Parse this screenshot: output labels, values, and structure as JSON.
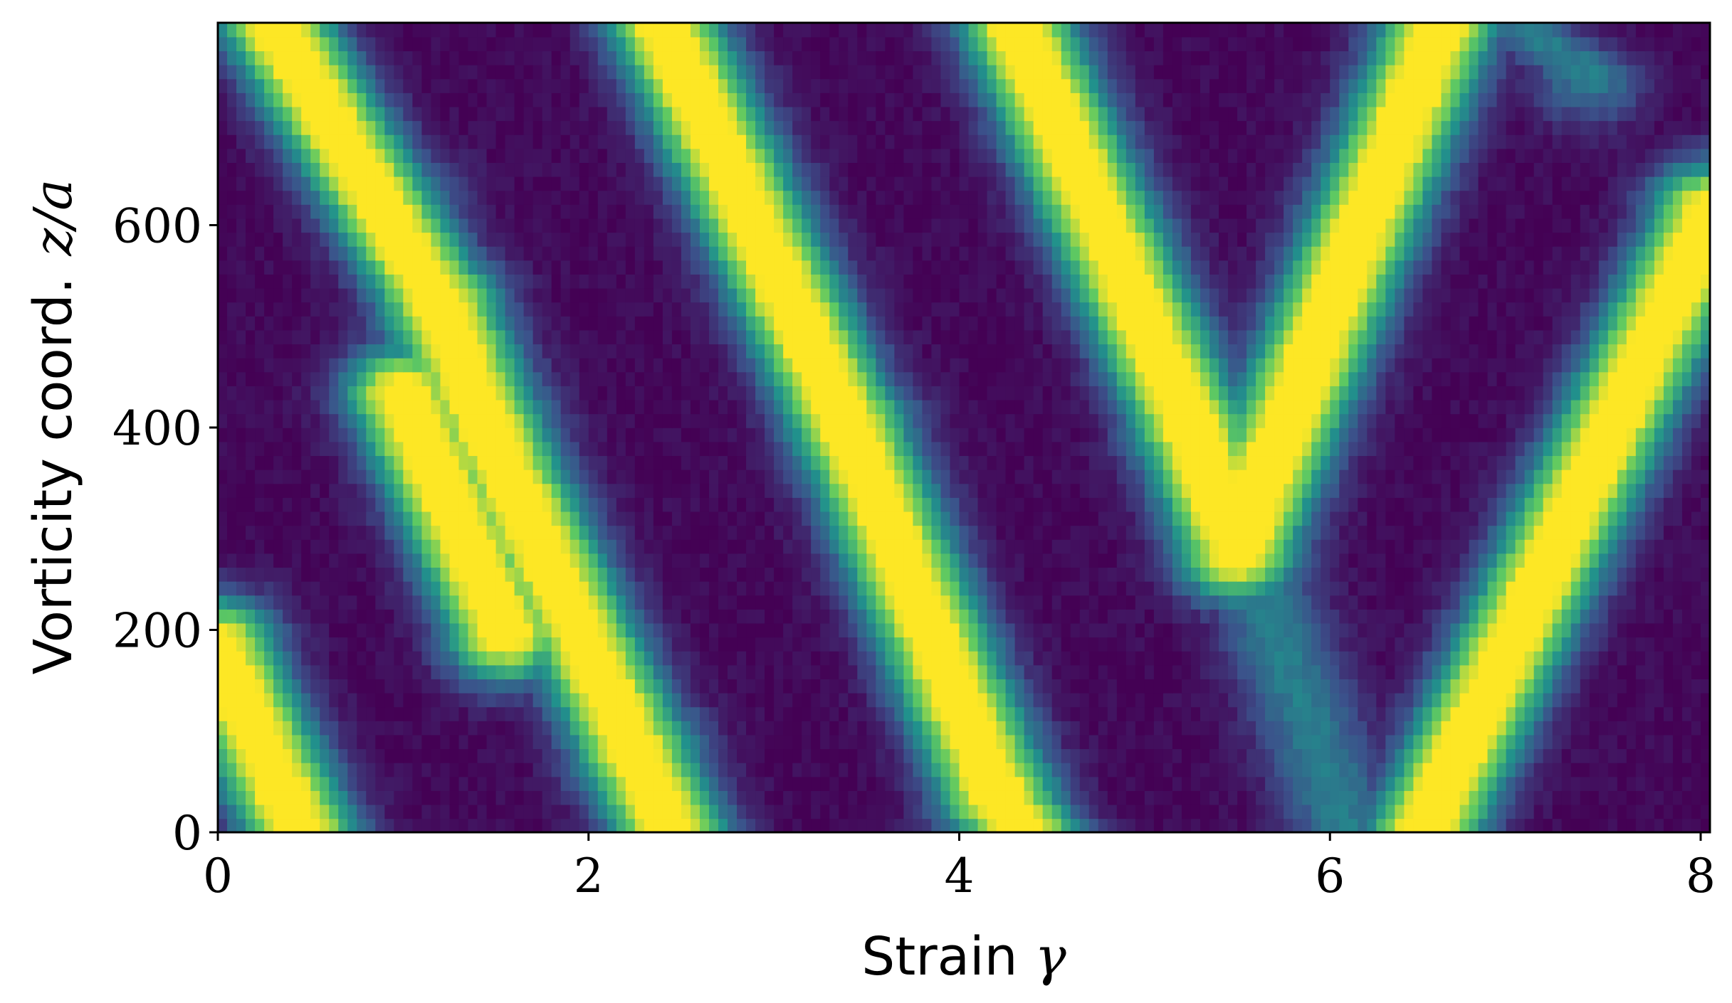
{
  "chart_data": {
    "type": "heatmap",
    "title": "",
    "xlabel": "Strain",
    "xlabel_symbol": "γ",
    "ylabel": "Vorticity coord.",
    "ylabel_symbol": "z/a",
    "xlim": [
      0,
      8.05
    ],
    "ylim": [
      0,
      800
    ],
    "xticks": [
      {
        "value": 0,
        "label": "0"
      },
      {
        "value": 2,
        "label": "2"
      },
      {
        "value": 4,
        "label": "4"
      },
      {
        "value": 6,
        "label": "6"
      },
      {
        "value": 8,
        "label": "8"
      }
    ],
    "yticks": [
      {
        "value": 0,
        "label": "0"
      },
      {
        "value": 200,
        "label": "200"
      },
      {
        "value": 400,
        "label": "400"
      },
      {
        "value": 600,
        "label": "600"
      }
    ],
    "colormap": "viridis",
    "colormap_stops": [
      "#440154",
      "#3b528b",
      "#21918c",
      "#5ec962",
      "#fde725"
    ],
    "value_range": [
      0,
      1
    ],
    "band_width_strain": 0.22,
    "bands": [
      {
        "start": [
          0.0,
          180
        ],
        "end": [
          0.45,
          0
        ]
      },
      {
        "start": [
          0.3,
          800
        ],
        "end": [
          1.2,
          520
        ]
      },
      {
        "start": [
          1.2,
          520
        ],
        "end": [
          1.45,
          400
        ]
      },
      {
        "start": [
          1.45,
          400
        ],
        "end": [
          2.25,
          80
        ]
      },
      {
        "start": [
          2.25,
          80
        ],
        "end": [
          2.45,
          0
        ]
      },
      {
        "start": [
          1.0,
          430
        ],
        "end": [
          1.55,
          200
        ]
      },
      {
        "start": [
          2.4,
          800
        ],
        "end": [
          3.4,
          400
        ]
      },
      {
        "start": [
          3.4,
          400
        ],
        "end": [
          4.2,
          40
        ]
      },
      {
        "start": [
          4.2,
          40
        ],
        "end": [
          4.35,
          0
        ]
      },
      {
        "start": [
          4.3,
          800
        ],
        "end": [
          5.25,
          400
        ]
      },
      {
        "start": [
          5.25,
          400
        ],
        "end": [
          5.5,
          280
        ]
      },
      {
        "start": [
          5.5,
          280
        ],
        "end": [
          6.6,
          800
        ]
      },
      {
        "start": [
          6.5,
          0
        ],
        "end": [
          8.05,
          610
        ]
      },
      {
        "start": [
          1.0,
          620
        ],
        "end": [
          1.3,
          410
        ],
        "intensity": 0.45
      },
      {
        "start": [
          5.6,
          250
        ],
        "end": [
          6.1,
          0
        ],
        "intensity": 0.35
      },
      {
        "start": [
          7.0,
          800
        ],
        "end": [
          7.4,
          750
        ],
        "intensity": 0.35
      }
    ]
  }
}
